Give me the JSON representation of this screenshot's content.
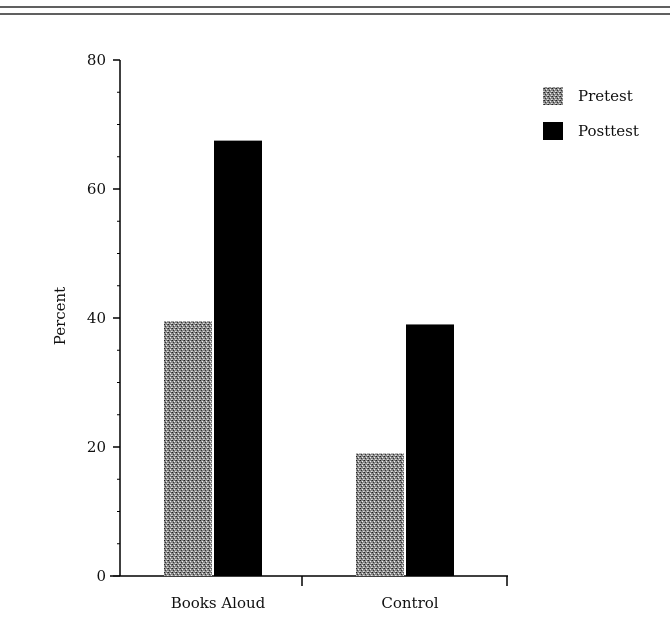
{
  "chart_data": {
    "type": "bar",
    "categories": [
      "Books Aloud",
      "Control"
    ],
    "series": [
      {
        "name": "Pretest",
        "values": [
          39.5,
          19
        ],
        "color": "#555555",
        "pattern": "stipple"
      },
      {
        "name": "Posttest",
        "values": [
          67.5,
          39
        ],
        "color": "#000000",
        "pattern": "solid"
      }
    ],
    "xlabel": "",
    "ylabel": "Percent",
    "ylim": [
      0,
      80
    ],
    "yticks": [
      0,
      20,
      40,
      60,
      80
    ],
    "legend_position": "top-right",
    "grid": false
  }
}
